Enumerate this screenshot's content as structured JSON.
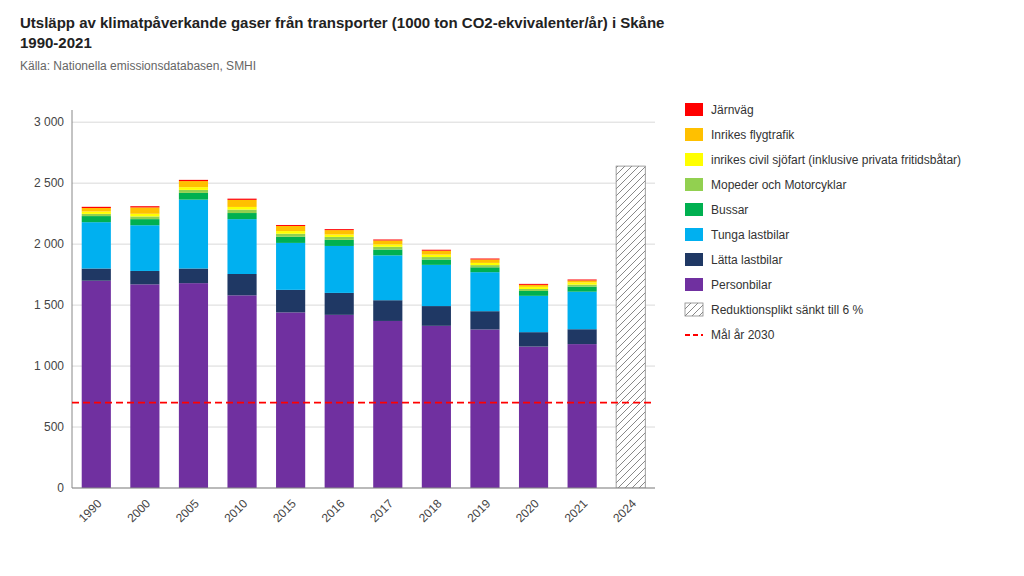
{
  "chart_data": {
    "type": "bar",
    "stacked": true,
    "title": "Utsläpp av klimatpåverkande gaser från transporter (1000 ton CO2-ekvivalenter/år) i Skåne\n1990-2021",
    "subtitle": "Källa: Nationella emissionsdatabasen, SMHI",
    "categories": [
      "1990",
      "2000",
      "2005",
      "2010",
      "2015",
      "2016",
      "2017",
      "2018",
      "2019",
      "2020",
      "2021",
      "2024"
    ],
    "series": [
      {
        "name": "Personbilar",
        "color": "#7030A0",
        "values": [
          1700,
          1670,
          1680,
          1580,
          1440,
          1420,
          1370,
          1330,
          1300,
          1160,
          1180,
          null
        ]
      },
      {
        "name": "Lätta lastbilar",
        "color": "#1F3864",
        "values": [
          100,
          110,
          120,
          175,
          185,
          180,
          170,
          162,
          150,
          118,
          122,
          null
        ]
      },
      {
        "name": "Tunga lastbilar",
        "color": "#00B0F0",
        "values": [
          380,
          375,
          565,
          450,
          385,
          385,
          368,
          338,
          320,
          298,
          308,
          null
        ]
      },
      {
        "name": "Bussar",
        "color": "#00B050",
        "values": [
          50,
          50,
          55,
          50,
          50,
          50,
          48,
          44,
          40,
          40,
          42,
          null
        ]
      },
      {
        "name": "Mopeder och Motorcyklar",
        "color": "#92D050",
        "values": [
          18,
          22,
          25,
          28,
          25,
          24,
          22,
          20,
          18,
          16,
          16,
          null
        ]
      },
      {
        "name": "inrikes civil sjöfart (inklusive privata fritidsbåtar)",
        "color": "#FFFF00",
        "values": [
          20,
          22,
          22,
          22,
          22,
          20,
          20,
          20,
          18,
          18,
          18,
          null
        ]
      },
      {
        "name": "Inrikes flygtrafik",
        "color": "#FFC000",
        "values": [
          28,
          52,
          50,
          58,
          42,
          36,
          32,
          32,
          28,
          16,
          16,
          null
        ]
      },
      {
        "name": "Järnväg",
        "color": "#FF0000",
        "values": [
          10,
          10,
          10,
          10,
          8,
          8,
          8,
          8,
          8,
          8,
          8,
          null
        ]
      },
      {
        "name": "Reduktionsplikt sänkt till 6 %",
        "type": "hatched_bar",
        "color": "#888888",
        "values": [
          null,
          null,
          null,
          null,
          null,
          null,
          null,
          null,
          null,
          null,
          null,
          2640
        ]
      }
    ],
    "annotations": [
      {
        "type": "hline",
        "value": 700,
        "label": "Mål år 2030",
        "color": "red",
        "line_style": "dashed"
      }
    ],
    "ylim": [
      0,
      3100
    ],
    "yticks": [
      0,
      {
        "value": 500,
        "label": "500"
      },
      {
        "value": 1000,
        "label": "1 000"
      },
      {
        "value": 1500,
        "label": "1 500"
      },
      {
        "value": 2000,
        "label": "2 000"
      },
      {
        "value": 2500,
        "label": "2 500"
      },
      {
        "value": 3000,
        "label": "3 000"
      }
    ],
    "grid": true,
    "legend": "right"
  }
}
